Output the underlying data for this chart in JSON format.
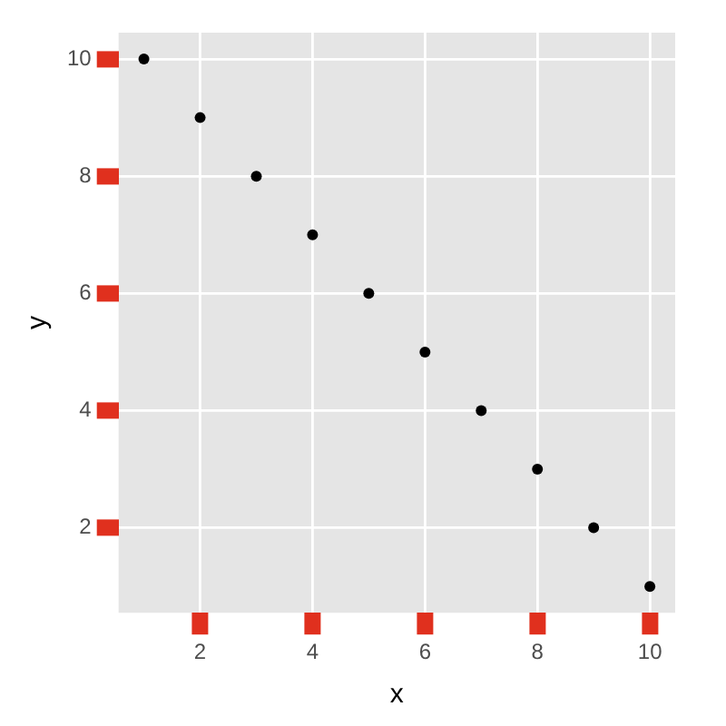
{
  "chart_data": {
    "type": "scatter",
    "xlabel": "x",
    "ylabel": "y",
    "x": [
      1,
      2,
      3,
      4,
      5,
      6,
      7,
      8,
      9,
      10
    ],
    "series": [
      {
        "color": "#000000",
        "values": [
          10,
          9,
          8,
          7,
          6,
          5,
          4,
          3,
          2,
          1
        ]
      }
    ],
    "xlim": [
      0.55,
      10.45
    ],
    "ylim": [
      0.55,
      10.45
    ],
    "xticks": [
      2,
      4,
      6,
      8,
      10
    ],
    "yticks": [
      2,
      4,
      6,
      8,
      10
    ],
    "grid": true,
    "marker": "circle",
    "legend": false
  }
}
